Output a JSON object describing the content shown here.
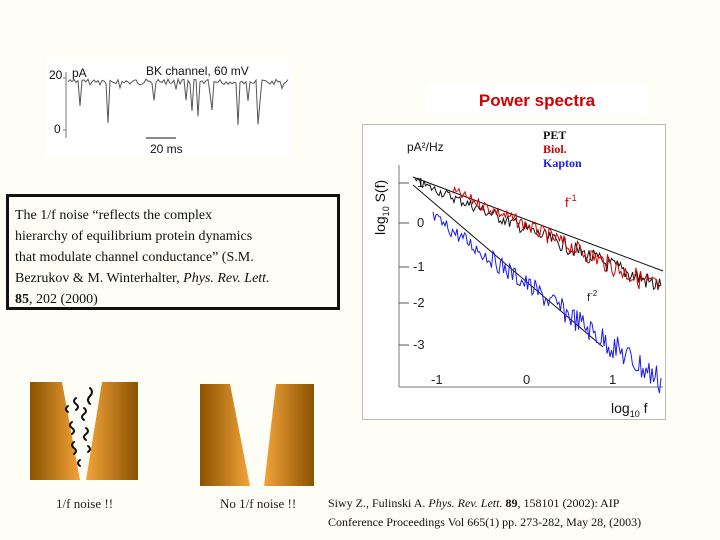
{
  "trace_panel": {
    "title": "BK channel, 60 mV",
    "unit": "pA",
    "y_top_label": "20",
    "y_zero_label": "0",
    "time_scale": "20 ms"
  },
  "spectra": {
    "title": "Power spectra",
    "y_unit": "pA²/Hz",
    "y_axis_title_main": "log",
    "y_axis_title_sub": "10",
    "y_axis_title_rest": " S(f)",
    "x_axis_title_main": "log",
    "x_axis_title_sub": "10",
    "x_axis_title_rest": " f",
    "y_ticks": [
      "1",
      "0",
      "-1",
      "-2",
      "-3"
    ],
    "x_ticks": [
      "-1",
      "0",
      "1"
    ],
    "legend": [
      {
        "label": "PET",
        "color": "#111111"
      },
      {
        "label": "Biol.",
        "color": "#d10000"
      },
      {
        "label": "Kapton",
        "color": "#1a1aee"
      }
    ],
    "slope_labels": {
      "f1_base": "f",
      "f1_exp": "-1",
      "f2_base": "f",
      "f2_exp": "-2"
    }
  },
  "quote": {
    "line1": "The 1/f noise “reflects the complex",
    "line2": "hierarchy of equilibrium protein dynamics",
    "line3": "that modulate channel conductance” (S.M.",
    "line4_pre": "Bezrukov & M. Winterhalter, ",
    "line4_journal": "Phys. Rev. Lett.",
    "line5_volume": "85",
    "line5_rest": ", 202 (2000)"
  },
  "pore_captions": {
    "left": "1/f noise !!",
    "right": "No 1/f noise !!"
  },
  "citation": {
    "line1_pre": "Siwy Z., Fulinski A. ",
    "line1_journal": "Phys. Rev. Lett.",
    "line1_volume": " 89",
    "line1_rest": ", 158101 (2002): AIP",
    "line2": "Conference Proceedings Vol 665(1) pp. 273-282, May 28, (2003)"
  },
  "colors": {
    "trace": "#555555",
    "pore_dark": "#8a5200",
    "pore_light": "#f3a43a",
    "red": "#d10000",
    "blue": "#1a1aee"
  }
}
